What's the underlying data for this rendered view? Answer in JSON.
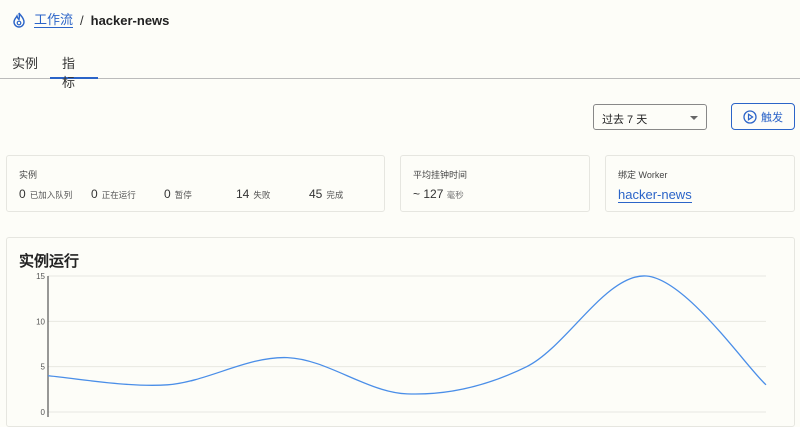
{
  "breadcrumb": {
    "icon": "workflow-flame-icon",
    "parent": "工作流",
    "separator": "/",
    "current": "hacker-news"
  },
  "tabs": [
    {
      "label": "实例",
      "active": false
    },
    {
      "label": "指标",
      "active": true
    }
  ],
  "toolbar": {
    "range_value": "过去 7 天",
    "trigger_label": "触发",
    "trigger_icon": "play-circle-icon"
  },
  "cards": {
    "instances": {
      "label": "实例",
      "stats": [
        {
          "value": "0",
          "unit": "已加入队列"
        },
        {
          "value": "0",
          "unit": "正在运行"
        },
        {
          "value": "0",
          "unit": "暂停"
        },
        {
          "value": "14",
          "unit": "失败"
        },
        {
          "value": "45",
          "unit": "完成"
        }
      ]
    },
    "wall_time": {
      "label": "平均挂钟时间",
      "value": "~ 127",
      "unit": "毫秒"
    },
    "worker": {
      "label": "绑定 Worker",
      "link": "hacker-news"
    }
  },
  "accent_color": "#2b64c8",
  "chart_data": {
    "type": "line",
    "title": "实例运行",
    "ylim": [
      0,
      15
    ],
    "yticks": [
      "0",
      "5",
      "10",
      "15"
    ],
    "values": [
      4,
      3,
      6,
      2,
      5,
      15,
      3
    ],
    "grid": true,
    "color": "#4a8ee8"
  }
}
